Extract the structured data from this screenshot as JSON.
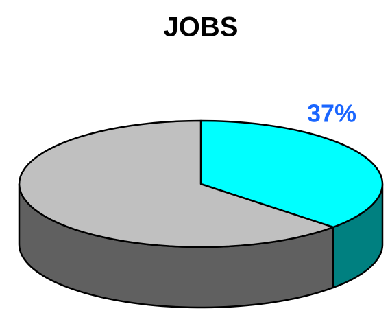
{
  "chart_data": {
    "type": "pie3d",
    "title": "JOBS",
    "categories": [
      null,
      null
    ],
    "values": [
      37,
      63
    ],
    "value_labels": [
      "37%",
      null
    ],
    "colors": [
      "#00ffff",
      "#c0c0c0"
    ],
    "side_colors": [
      "#008080",
      "#606060"
    ],
    "label_color": "#1a66ff"
  }
}
